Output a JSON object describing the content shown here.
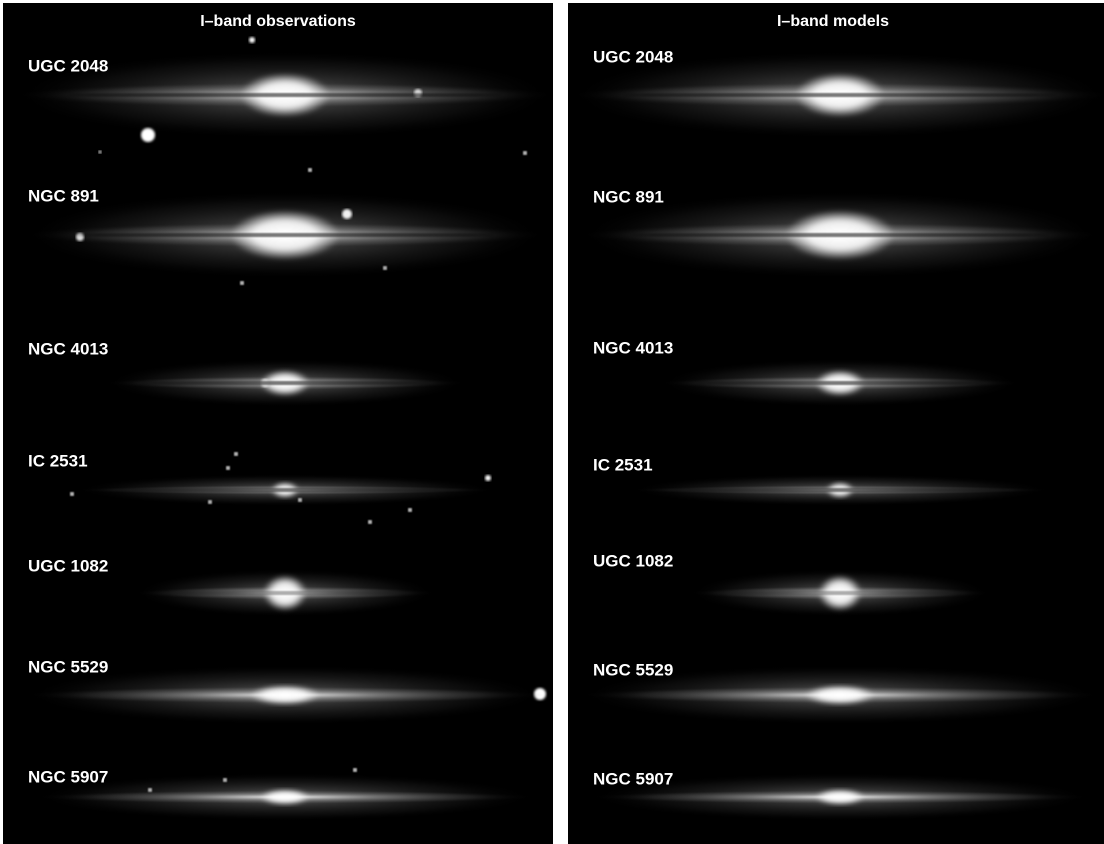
{
  "panels": [
    {
      "title": "I–band observations",
      "galaxies": [
        "UGC 2048",
        "NGC 891",
        "NGC 4013",
        "IC 2531",
        "UGC 1082",
        "NGC 5529",
        "NGC 5907"
      ]
    },
    {
      "title": "I–band models",
      "galaxies": [
        "UGC 2048",
        "NGC 891",
        "NGC 4013",
        "IC 2531",
        "UGC 1082",
        "NGC 5529",
        "NGC 5907"
      ]
    }
  ]
}
